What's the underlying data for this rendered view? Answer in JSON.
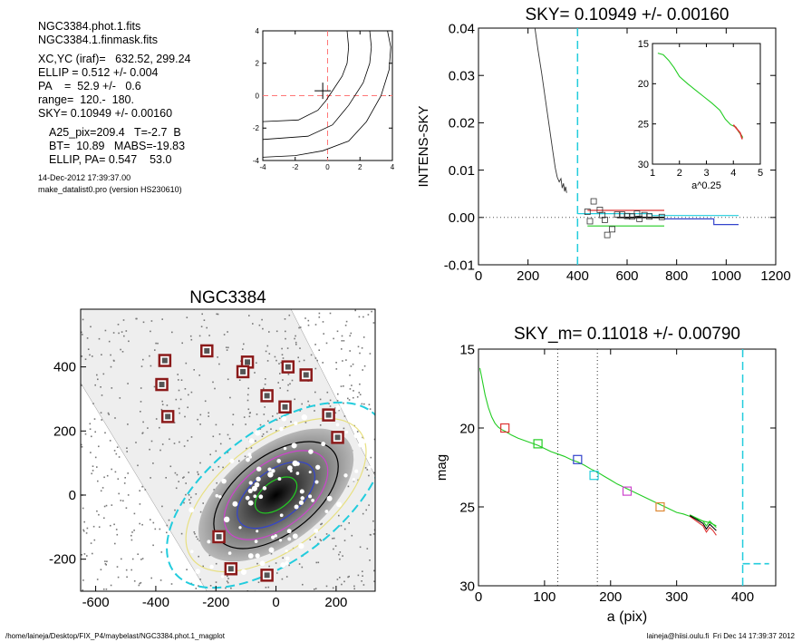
{
  "header": {
    "lines1": [
      "NGC3384.phot.1.fits",
      "NGC3384.1.finmask.fits"
    ],
    "lines2": [
      "XC,YC (iraf)=   632.52, 299.24",
      "ELLIP = 0.512 +/- 0.004",
      "PA    =  52.9 +/-   0.6",
      "range=  120.-  180.",
      "SKY= 0.10949 +/- 0.00160"
    ],
    "lines3": [
      "A25_pix=209.4   T=-2.7  B",
      "BT=  10.89   MABS=-19.83",
      "ELLIP, PA= 0.547    53.0"
    ],
    "lines4": [
      "14-Dec-2012 17:39:37.00",
      "make_datalist0.pro (version HS230610)"
    ]
  },
  "footer": {
    "left": "/home/laineja/Desktop/FIX_P4/maybelast/NGC3384.phot.1_magplot",
    "right": "laineja@hiisi.oulu.fi  Fri Dec 14 17:39:37 2012"
  },
  "colors": {
    "cyan": "#22ccdd",
    "red": "#dd3333",
    "green": "#22cc22",
    "blue": "#3344cc",
    "magenta": "#cc44cc",
    "orange": "#dd8833",
    "darkred": "#8b1a1a"
  },
  "chart_data": [
    {
      "type": "line",
      "panel": "contour-plot",
      "title": "",
      "xlim": [
        -4,
        4
      ],
      "ylim": [
        -4,
        4
      ],
      "xticks": [
        -4,
        -2,
        0,
        2,
        4
      ],
      "yticks": [
        -4,
        -2,
        0,
        2,
        4
      ],
      "crosshair_dashed": {
        "x": 0,
        "y": 0
      },
      "center_marker": [
        -0.3,
        0.3
      ],
      "contours": [
        [
          [
            1.2,
            4
          ],
          [
            1.3,
            3
          ],
          [
            1.2,
            2
          ],
          [
            0.9,
            1.2
          ],
          [
            0.3,
            0.3
          ],
          [
            -0.1,
            -0.3
          ],
          [
            -0.6,
            -0.9
          ],
          [
            -1.8,
            -1.5
          ],
          [
            -4,
            -1.6
          ]
        ],
        [
          [
            2.6,
            4
          ],
          [
            2.7,
            3
          ],
          [
            2.6,
            2
          ],
          [
            2.2,
            0.8
          ],
          [
            1.3,
            -0.6
          ],
          [
            0.3,
            -1.8
          ],
          [
            -1.2,
            -2.5
          ],
          [
            -4,
            -2.7
          ]
        ],
        [
          [
            3.7,
            4
          ],
          [
            3.9,
            3
          ],
          [
            3.8,
            1.6
          ],
          [
            3.3,
            0
          ],
          [
            2.4,
            -1.6
          ],
          [
            1.3,
            -2.8
          ],
          [
            -0.3,
            -3.4
          ],
          [
            -2,
            -3.7
          ],
          [
            -4,
            -3.8
          ]
        ]
      ]
    },
    {
      "type": "line",
      "panel": "sky-plot",
      "title": "SKY= 0.10949 +/- 0.00160",
      "xlabel": "",
      "ylabel": "INTENS-SKY",
      "xlim": [
        0,
        1200
      ],
      "ylim": [
        -0.01,
        0.04
      ],
      "xticks": [
        0,
        200,
        400,
        600,
        800,
        1000,
        1200
      ],
      "yticks": [
        -0.01,
        0.0,
        0.01,
        0.02,
        0.03,
        0.04
      ],
      "ytick_labels": [
        "-0.01",
        "0.00",
        "0.01",
        "0.02",
        "0.03",
        "0.04"
      ],
      "vline_cyan": 400,
      "profile": {
        "x": [
          228,
          240,
          255,
          270,
          285,
          300,
          310,
          318,
          326,
          333,
          338,
          343,
          348,
          352,
          356
        ],
        "y": [
          0.04,
          0.0355,
          0.0305,
          0.025,
          0.0195,
          0.014,
          0.0105,
          0.0085,
          0.0075,
          0.0082,
          0.0062,
          0.0072,
          0.0055,
          0.0065,
          0.0052
        ]
      },
      "squares": {
        "x": [
          440,
          450,
          465,
          490,
          500,
          510,
          520,
          540,
          560,
          580,
          600,
          620,
          640,
          650,
          670,
          690,
          740
        ],
        "y": [
          0.0012,
          -0.0008,
          0.0034,
          0.0016,
          0.0005,
          -0.0005,
          -0.0037,
          -0.0025,
          0.0006,
          0.0006,
          0.0003,
          0.0002,
          0.0008,
          -0.0003,
          0.0005,
          0.0002,
          0.0001
        ]
      },
      "steps": [
        {
          "color": "#22ccdd",
          "points": [
            [
              400,
              0.0008
            ],
            [
              700,
              0.0008
            ],
            [
              700,
              0.0004
            ],
            [
              1050,
              0.0004
            ]
          ]
        },
        {
          "color": "#dd3333",
          "points": [
            [
              440,
              0.0015
            ],
            [
              750,
              0.0015
            ]
          ]
        },
        {
          "color": "#22cc22",
          "points": [
            [
              440,
              -0.0018
            ],
            [
              750,
              -0.0018
            ]
          ]
        },
        {
          "color": "#000000",
          "points": [
            [
              560,
              0.0
            ],
            [
              750,
              0.0
            ]
          ]
        },
        {
          "color": "#3344cc",
          "points": [
            [
              750,
              -0.0003
            ],
            [
              950,
              -0.0003
            ],
            [
              950,
              -0.0015
            ],
            [
              1050,
              -0.0015
            ]
          ]
        }
      ],
      "inset": {
        "xlabel": "a^0.25",
        "xlim": [
          1,
          5
        ],
        "ylim": [
          15,
          30
        ],
        "xticks": [
          1,
          2,
          3,
          4,
          5
        ],
        "yticks": [
          15,
          20,
          25,
          30
        ],
        "x": [
          1.2,
          1.4,
          1.6,
          1.8,
          2.0,
          2.3,
          2.6,
          2.9,
          3.2,
          3.5,
          3.7,
          3.9,
          4.1,
          4.2,
          4.3,
          4.35
        ],
        "y": [
          16.2,
          16.4,
          17.1,
          18.0,
          19.1,
          20.0,
          20.8,
          21.6,
          22.4,
          23.3,
          24.4,
          25.1,
          25.4,
          26.0,
          26.4,
          26.7
        ]
      }
    },
    {
      "type": "scatter",
      "panel": "galaxy-image",
      "title": "NGC3384",
      "xlim": [
        -650,
        330
      ],
      "ylim": [
        -300,
        580
      ],
      "xticks": [
        -600,
        -400,
        -200,
        0,
        200
      ],
      "yticks": [
        -200,
        0,
        200,
        400
      ],
      "center": [
        0,
        0
      ],
      "ellipse_pa_deg": 37,
      "ellipses": [
        {
          "a": 425,
          "b": 215,
          "color": "#22ccdd"
        },
        {
          "a": 350,
          "b": 180,
          "color": "#e8e080"
        },
        {
          "a": 240,
          "b": 130,
          "color": "#000000"
        },
        {
          "a": 200,
          "b": 108,
          "color": "#cc44cc"
        },
        {
          "a": 150,
          "b": 80,
          "color": "#3344cc"
        },
        {
          "a": 80,
          "b": 45,
          "color": "#22cc22"
        }
      ],
      "sky_boxes": [
        [
          -370,
          420
        ],
        [
          -230,
          450
        ],
        [
          -380,
          345
        ],
        [
          -360,
          245
        ],
        [
          -95,
          415
        ],
        [
          -110,
          385
        ],
        [
          40,
          400
        ],
        [
          100,
          375
        ],
        [
          -30,
          310
        ],
        [
          30,
          275
        ],
        [
          175,
          250
        ],
        [
          205,
          180
        ],
        [
          -190,
          -130
        ],
        [
          -150,
          -230
        ],
        [
          -30,
          -250
        ]
      ]
    },
    {
      "type": "line",
      "panel": "mag-plot",
      "title": "SKY_m=  0.11018 +/- 0.00790",
      "xlabel": "a (pix)",
      "ylabel": "mag",
      "xlim": [
        0,
        450
      ],
      "ylim": [
        15,
        30
      ],
      "xticks": [
        0,
        100,
        200,
        300,
        400
      ],
      "yticks": [
        15,
        20,
        25,
        30
      ],
      "vlines_dotted": [
        120,
        180
      ],
      "vline_cyan": 400,
      "cyan_segment": {
        "x": [
          400,
          440
        ],
        "y": 28.6
      },
      "profile_x": [
        2,
        5,
        10,
        15,
        20,
        25,
        30,
        35,
        40,
        50,
        60,
        70,
        80,
        90,
        100,
        110,
        120,
        130,
        140,
        150,
        160,
        170,
        180,
        190,
        200,
        210,
        220,
        230,
        240,
        250,
        260,
        270,
        280,
        290,
        300,
        310,
        320,
        330,
        340,
        350,
        360
      ],
      "profile_y": [
        16.2,
        16.8,
        17.9,
        18.7,
        19.3,
        19.7,
        19.95,
        20.1,
        20.2,
        20.45,
        20.65,
        20.8,
        20.95,
        21.1,
        21.3,
        21.5,
        21.65,
        21.8,
        22.0,
        22.15,
        22.35,
        22.6,
        22.8,
        23.05,
        23.3,
        23.55,
        23.75,
        23.95,
        24.15,
        24.35,
        24.55,
        24.75,
        24.95,
        25.15,
        25.35,
        25.45,
        25.6,
        25.75,
        25.9,
        26.0,
        26.2
      ],
      "tails": [
        {
          "color": "#dd3333",
          "x": [
            320,
            330,
            340,
            345,
            350,
            355,
            360
          ],
          "y": [
            25.6,
            25.9,
            26.2,
            26.6,
            26.3,
            26.5,
            26.8
          ]
        },
        {
          "color": "#22cc22",
          "x": [
            320,
            330,
            340,
            345,
            350,
            355,
            360
          ],
          "y": [
            25.5,
            25.7,
            25.9,
            26.2,
            25.9,
            26.1,
            26.3
          ]
        },
        {
          "color": "#000000",
          "x": [
            320,
            330,
            340,
            345,
            350,
            355,
            360
          ],
          "y": [
            25.55,
            25.8,
            26.05,
            26.4,
            26.1,
            26.3,
            26.5
          ]
        }
      ],
      "markers": [
        {
          "x": 40,
          "y": 20.0,
          "color": "#dd3333"
        },
        {
          "x": 90,
          "y": 21.0,
          "color": "#22cc22"
        },
        {
          "x": 150,
          "y": 22.0,
          "color": "#3344cc"
        },
        {
          "x": 175,
          "y": 23.0,
          "color": "#22ccdd"
        },
        {
          "x": 225,
          "y": 24.0,
          "color": "#cc44cc"
        },
        {
          "x": 275,
          "y": 25.0,
          "color": "#dd8833"
        }
      ]
    }
  ]
}
